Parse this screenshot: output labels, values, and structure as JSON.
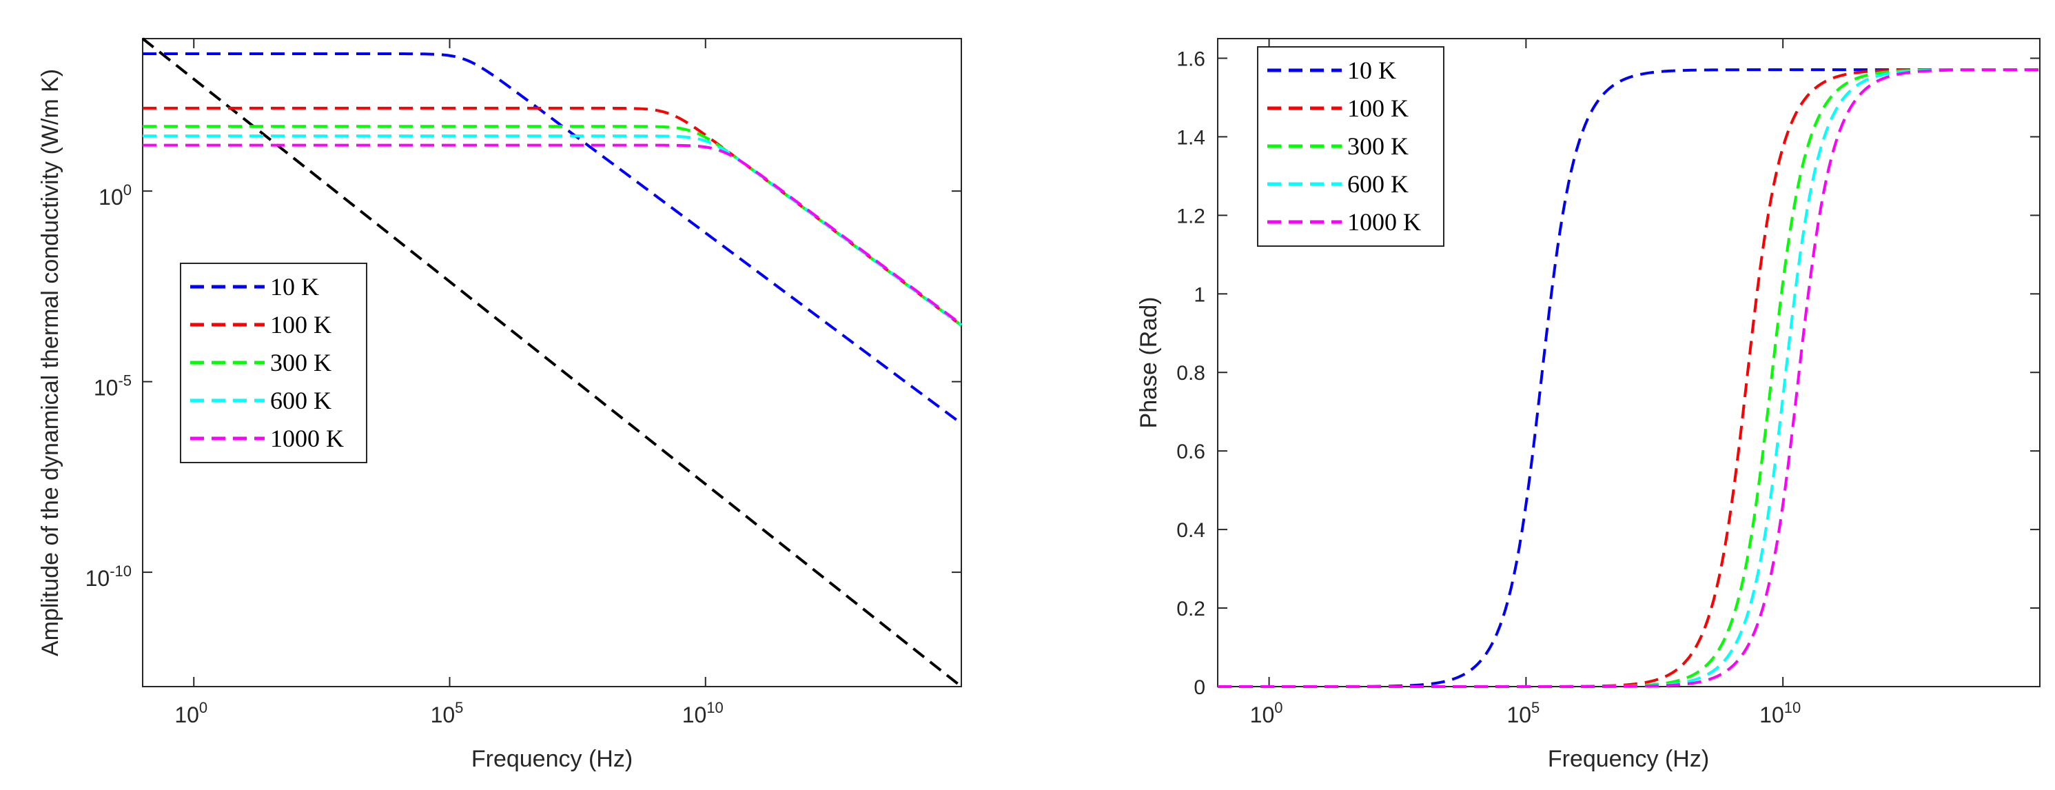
{
  "chart_data": [
    {
      "type": "line",
      "xscale": "log",
      "yscale": "log",
      "xlabel": "Frequency (Hz)",
      "ylabel": "Amplitude of the dynamical thermal conductivity (W/m K)",
      "xlim": [
        0.1,
        1000000000000000.0
      ],
      "ylim": [
        1e-13,
        10000.0
      ],
      "xticks": [
        {
          "value": 1,
          "base": "10",
          "exp": "0"
        },
        {
          "value": 100000,
          "base": "10",
          "exp": "5"
        },
        {
          "value": 10000000000,
          "base": "10",
          "exp": "10"
        }
      ],
      "yticks": [
        {
          "value": 1,
          "base": "10",
          "exp": "0"
        },
        {
          "value": 1e-05,
          "base": "10",
          "exp": "-5"
        },
        {
          "value": 1e-10,
          "base": "10",
          "exp": "-10"
        }
      ],
      "grid": false,
      "legend_position": "center-left",
      "series": [
        {
          "name": "10 K",
          "color": "#0000FF",
          "dash": "dashed",
          "low_freq_value": 4000,
          "corner_frequency_hz": 200000
        },
        {
          "name": "100 K",
          "color": "#FF0000",
          "dash": "dashed",
          "low_freq_value": 150,
          "corner_frequency_hz": 2000000000
        },
        {
          "name": "300 K",
          "color": "#00FF00",
          "dash": "dashed",
          "low_freq_value": 50,
          "corner_frequency_hz": 6000000000
        },
        {
          "name": "600 K",
          "color": "#00FFFF",
          "dash": "dashed",
          "low_freq_value": 28,
          "corner_frequency_hz": 11000000000
        },
        {
          "name": "1000 K",
          "color": "#FF00FF",
          "dash": "dashed",
          "low_freq_value": 16,
          "corner_frequency_hz": 20000000000
        }
      ],
      "reference_line": {
        "color": "#000000",
        "dash": "dashed",
        "x": [
          0.1,
          1000000000000000.0
        ],
        "y": [
          10000,
          1e-13
        ]
      }
    },
    {
      "type": "line",
      "xscale": "log",
      "yscale": "linear",
      "xlabel": "Frequency (Hz)",
      "ylabel": "Phase (Rad)",
      "xlim": [
        0.1,
        1000000000000000.0
      ],
      "ylim": [
        0,
        1.65
      ],
      "xticks": [
        {
          "value": 1,
          "base": "10",
          "exp": "0"
        },
        {
          "value": 100000,
          "base": "10",
          "exp": "5"
        },
        {
          "value": 10000000000,
          "base": "10",
          "exp": "10"
        }
      ],
      "yticks": [
        "0",
        "0.2",
        "0.4",
        "0.6",
        "0.8",
        "1",
        "1.2",
        "1.4",
        "1.6"
      ],
      "grid": false,
      "legend_position": "top-left",
      "series": [
        {
          "name": "10 K",
          "color": "#0000FF",
          "dash": "dashed",
          "max_value": 1.5708,
          "corner_frequency_hz": 200000
        },
        {
          "name": "100 K",
          "color": "#FF0000",
          "dash": "dashed",
          "max_value": 1.5708,
          "corner_frequency_hz": 2000000000
        },
        {
          "name": "300 K",
          "color": "#00FF00",
          "dash": "dashed",
          "max_value": 1.5708,
          "corner_frequency_hz": 6000000000
        },
        {
          "name": "600 K",
          "color": "#00FFFF",
          "dash": "dashed",
          "max_value": 1.5708,
          "corner_frequency_hz": 11000000000
        },
        {
          "name": "1000 K",
          "color": "#FF00FF",
          "dash": "dashed",
          "max_value": 1.5708,
          "corner_frequency_hz": 20000000000
        }
      ]
    }
  ]
}
